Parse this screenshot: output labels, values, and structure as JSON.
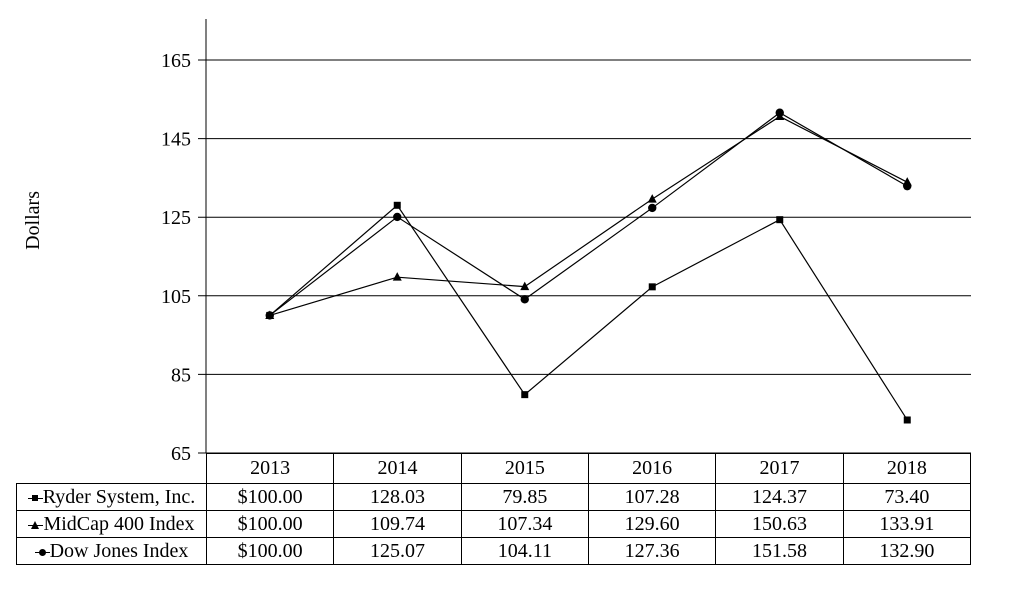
{
  "chart_data": {
    "type": "line",
    "ylabel": "Dollars",
    "x_categories": [
      "2013",
      "2014",
      "2015",
      "2016",
      "2017",
      "2018"
    ],
    "yticks": [
      65,
      85,
      105,
      125,
      145,
      165
    ],
    "ylim": [
      65,
      165
    ],
    "grid": "horizontal",
    "legend_position": "table-row-labels",
    "line_color": "#000000",
    "series": [
      {
        "name": "Ryder System, Inc.",
        "marker": "square",
        "values": [
          100.0,
          128.03,
          79.85,
          107.28,
          124.37,
          73.4
        ]
      },
      {
        "name": "MidCap 400 Index",
        "marker": "triangle",
        "values": [
          100.0,
          109.74,
          107.34,
          129.6,
          150.63,
          133.91
        ]
      },
      {
        "name": "Dow Jones Index",
        "marker": "circle",
        "values": [
          100.0,
          125.07,
          104.11,
          127.36,
          151.58,
          132.9
        ]
      }
    ]
  },
  "table": {
    "year_headers": [
      "2013",
      "2014",
      "2015",
      "2016",
      "2017",
      "2018"
    ],
    "rows": [
      {
        "label": "Ryder System, Inc.",
        "marker": "square",
        "cells": [
          "$100.00",
          "128.03",
          "79.85",
          "107.28",
          "124.37",
          "73.40"
        ]
      },
      {
        "label": "MidCap 400 Index",
        "marker": "triangle",
        "cells": [
          "$100.00",
          "109.74",
          "107.34",
          "129.60",
          "150.63",
          "133.91"
        ]
      },
      {
        "label": "Dow Jones Index",
        "marker": "circle",
        "cells": [
          "$100.00",
          "125.07",
          "104.11",
          "127.36",
          "151.58",
          "132.90"
        ]
      }
    ]
  },
  "colors": {
    "background": "#ffffff",
    "axis": "#000000",
    "text": "#000000"
  }
}
